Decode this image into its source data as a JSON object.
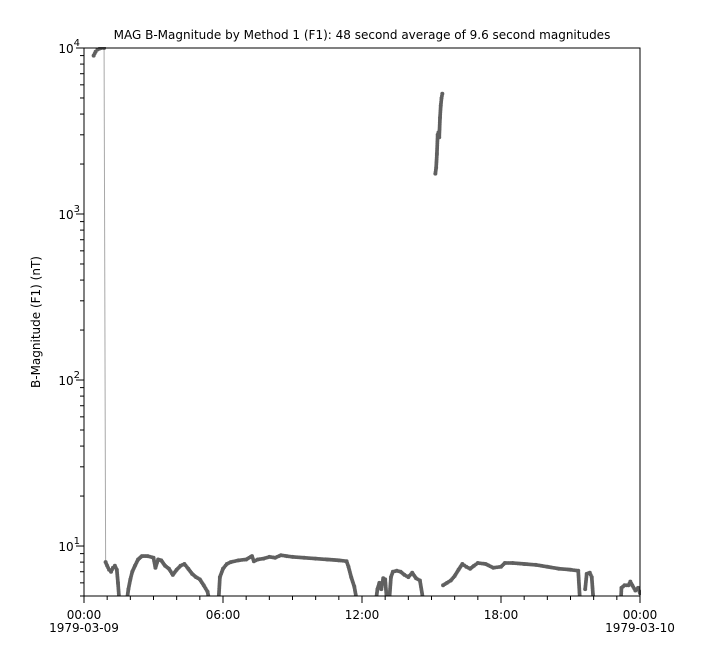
{
  "chart_data": {
    "type": "scatter",
    "title": "MAG  B-Magnitude by Method 1 (F1): 48 second average of 9.6 second magnitudes",
    "ylabel": "B-Magnitude (F1) (nT)",
    "xlabel": "",
    "yscale": "log",
    "ylim": [
      5,
      10000
    ],
    "xlim": [
      "1979-03-09 00:00",
      "1979-03-10 00:00"
    ],
    "y_ticks": [
      {
        "value": 10,
        "base": "10",
        "exp": "1"
      },
      {
        "value": 100,
        "base": "10",
        "exp": "2"
      },
      {
        "value": 1000,
        "base": "10",
        "exp": "3"
      },
      {
        "value": 10000,
        "base": "10",
        "exp": "4"
      }
    ],
    "x_ticks": [
      {
        "time": "00:00",
        "label": "00:00",
        "date": "1979-03-09"
      },
      {
        "time": "06:00",
        "label": "06:00",
        "date": ""
      },
      {
        "time": "12:00",
        "label": "12:00",
        "date": ""
      },
      {
        "time": "18:00",
        "label": "18:00",
        "date": ""
      },
      {
        "time": "24:00",
        "label": "00:00",
        "date": "1979-03-10"
      }
    ],
    "grid": false,
    "colors": {
      "marker": "#606060",
      "line": "#a8a8a8",
      "axis": "#000000"
    },
    "points": [
      [
        "00:25",
        9000
      ],
      [
        "00:30",
        9500
      ],
      [
        "00:35",
        9800
      ],
      [
        "00:45",
        10000
      ],
      [
        "00:52",
        10000
      ],
      [
        "00:56",
        8.0
      ],
      [
        "01:00",
        7.6
      ],
      [
        "01:05",
        7.2
      ],
      [
        "01:10",
        7.0
      ],
      [
        "01:15",
        7.4
      ],
      [
        "01:20",
        7.6
      ],
      [
        "01:25",
        7.2
      ],
      [
        "01:28",
        6.0
      ],
      [
        "01:32",
        4.5
      ],
      null,
      [
        "01:50",
        4.5
      ],
      [
        "01:55",
        5.5
      ],
      [
        "02:00",
        6.3
      ],
      [
        "02:05",
        7.0
      ],
      [
        "02:12",
        7.6
      ],
      [
        "02:20",
        8.3
      ],
      [
        "02:30",
        8.7
      ],
      [
        "02:45",
        8.7
      ],
      [
        "03:00",
        8.5
      ],
      [
        "03:05",
        7.4
      ],
      [
        "03:12",
        8.3
      ],
      [
        "03:20",
        8.2
      ],
      [
        "03:30",
        7.6
      ],
      [
        "03:40",
        7.3
      ],
      [
        "03:50",
        6.7
      ],
      [
        "04:00",
        7.2
      ],
      [
        "04:10",
        7.6
      ],
      [
        "04:20",
        7.8
      ],
      [
        "04:30",
        7.3
      ],
      [
        "04:40",
        6.8
      ],
      [
        "04:50",
        6.5
      ],
      [
        "05:00",
        6.3
      ],
      [
        "05:10",
        5.8
      ],
      [
        "05:20",
        5.3
      ],
      [
        "05:26",
        4.5
      ],
      null,
      [
        "05:48",
        4.5
      ],
      [
        "05:52",
        6.5
      ],
      [
        "06:00",
        7.3
      ],
      [
        "06:10",
        7.8
      ],
      [
        "06:20",
        8.0
      ],
      [
        "06:40",
        8.2
      ],
      [
        "07:00",
        8.3
      ],
      [
        "07:15",
        8.7
      ],
      [
        "07:20",
        8.1
      ],
      [
        "07:30",
        8.3
      ],
      [
        "07:45",
        8.4
      ],
      [
        "08:00",
        8.6
      ],
      [
        "08:15",
        8.5
      ],
      [
        "08:30",
        8.8
      ],
      [
        "08:45",
        8.7
      ],
      [
        "09:00",
        8.6
      ],
      [
        "09:30",
        8.5
      ],
      [
        "10:00",
        8.4
      ],
      [
        "10:30",
        8.3
      ],
      [
        "11:00",
        8.2
      ],
      [
        "11:20",
        8.1
      ],
      [
        "11:25",
        7.5
      ],
      [
        "11:32",
        6.5
      ],
      [
        "11:40",
        5.7
      ],
      [
        "11:48",
        4.5
      ],
      null,
      [
        "12:35",
        4.5
      ],
      [
        "12:40",
        5.5
      ],
      [
        "12:45",
        6.0
      ],
      [
        "12:50",
        5.5
      ],
      [
        "12:55",
        6.4
      ],
      [
        "13:00",
        6.3
      ],
      [
        "13:05",
        4.5
      ],
      null,
      [
        "13:10",
        4.5
      ],
      [
        "13:15",
        6.5
      ],
      [
        "13:20",
        7.0
      ],
      [
        "13:30",
        7.1
      ],
      [
        "13:40",
        7.0
      ],
      [
        "13:50",
        6.7
      ],
      [
        "14:00",
        6.5
      ],
      [
        "14:10",
        6.9
      ],
      [
        "14:20",
        6.4
      ],
      [
        "14:30",
        6.2
      ],
      [
        "14:40",
        4.5
      ],
      null,
      [
        "15:10",
        1750
      ],
      [
        "15:12",
        1900
      ],
      [
        "15:14",
        2300
      ],
      [
        "15:16",
        3000
      ],
      [
        "15:18",
        3100
      ],
      [
        "15:20",
        2900
      ],
      [
        "15:22",
        3800
      ],
      [
        "15:24",
        4500
      ],
      [
        "15:26",
        5000
      ],
      [
        "15:28",
        5300
      ],
      null,
      [
        "15:30",
        5.8
      ],
      [
        "15:40",
        6.0
      ],
      [
        "15:50",
        6.2
      ],
      [
        "16:00",
        6.6
      ],
      [
        "16:10",
        7.2
      ],
      [
        "16:20",
        7.8
      ],
      [
        "16:30",
        7.5
      ],
      [
        "16:40",
        7.3
      ],
      [
        "16:50",
        7.6
      ],
      [
        "17:00",
        7.9
      ],
      [
        "17:20",
        7.8
      ],
      [
        "17:40",
        7.4
      ],
      [
        "18:00",
        7.5
      ],
      [
        "18:10",
        7.9
      ],
      [
        "18:30",
        7.9
      ],
      [
        "19:00",
        7.8
      ],
      [
        "19:30",
        7.7
      ],
      [
        "20:00",
        7.5
      ],
      [
        "20:30",
        7.3
      ],
      [
        "21:00",
        7.2
      ],
      [
        "21:20",
        7.1
      ],
      [
        "21:25",
        4.5
      ],
      null,
      [
        "21:38",
        5.5
      ],
      [
        "21:42",
        6.8
      ],
      [
        "21:50",
        6.9
      ],
      [
        "21:55",
        6.5
      ],
      [
        "22:00",
        4.5
      ],
      null,
      [
        "23:10",
        4.5
      ],
      [
        "23:12",
        5.6
      ],
      [
        "23:20",
        5.8
      ],
      [
        "23:30",
        5.8
      ],
      [
        "23:35",
        6.1
      ],
      [
        "23:40",
        5.8
      ],
      [
        "23:48",
        5.4
      ],
      [
        "23:55",
        5.6
      ],
      [
        "24:00",
        5.2
      ]
    ]
  }
}
